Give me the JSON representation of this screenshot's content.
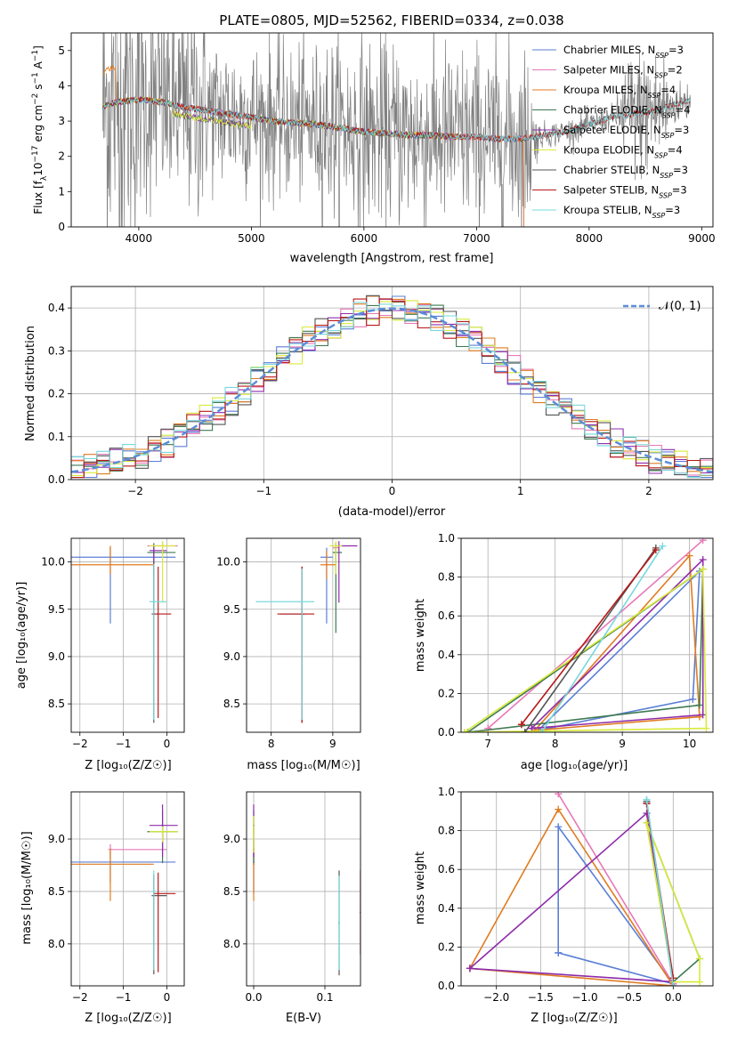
{
  "colors": {
    "chabrier_miles": "#5b7fd6",
    "salpeter_miles": "#e878b8",
    "kroupa_miles": "#e07b20",
    "chabrier_elodie": "#3e7a52",
    "salpeter_elodie": "#8e2cab",
    "kroupa_elodie": "#d9ea3a",
    "chabrier_stelib": "#555555",
    "salpeter_stelib": "#b81818",
    "kroupa_stelib": "#78d8dc",
    "data": "#808080",
    "normal": "#5b8ed8",
    "grid": "#b0b0b0"
  },
  "chart_data": [
    {
      "id": "spectrum",
      "type": "line",
      "title": "PLATE=0805, MJD=52562, FIBERID=0334, z=0.038",
      "xlabel": "wavelength [Angstrom, rest frame]",
      "ylabel_parts": [
        "Flux [f",
        "λ",
        "10",
        "−17",
        " erg cm",
        "−2",
        " s",
        "−1",
        " A",
        "−1",
        "]"
      ],
      "xlim": [
        3400,
        9100
      ],
      "ylim": [
        0,
        5.5
      ],
      "xticks": [
        4000,
        5000,
        6000,
        7000,
        8000,
        9000
      ],
      "yticks": [
        0,
        1,
        2,
        3,
        4,
        5
      ],
      "grid": false,
      "legend_position": "top-right",
      "legend": [
        {
          "label": "Chabrier MILES",
          "n": "3",
          "color_key": "chabrier_miles"
        },
        {
          "label": "Salpeter MILES",
          "n": "2",
          "color_key": "salpeter_miles"
        },
        {
          "label": "Kroupa MILES",
          "n": "4",
          "color_key": "kroupa_miles"
        },
        {
          "label": "Chabrier ELODIE",
          "n": "4",
          "color_key": "chabrier_elodie"
        },
        {
          "label": "Salpeter ELODIE",
          "n": "3",
          "color_key": "salpeter_elodie"
        },
        {
          "label": "Kroupa ELODIE",
          "n": "4",
          "color_key": "kroupa_elodie"
        },
        {
          "label": "Chabrier STELIB",
          "n": "3",
          "color_key": "chabrier_stelib"
        },
        {
          "label": "Salpeter STELIB",
          "n": "3",
          "color_key": "salpeter_stelib"
        },
        {
          "label": "Kroupa STELIB",
          "n": "3",
          "color_key": "kroupa_stelib"
        }
      ],
      "legend_n_label": "N",
      "legend_n_sub": "SSP",
      "model_continuum": {
        "x": [
          3680,
          3750,
          3850,
          3950,
          4050,
          4200,
          4400,
          4600,
          4800,
          5000,
          5200,
          5400,
          5600,
          5800,
          6000,
          6200,
          6400,
          6600,
          6800,
          7000,
          7200,
          7400,
          7600,
          7800,
          8000,
          8200,
          8400,
          8600,
          8800,
          8900
        ],
        "y": [
          3.4,
          3.5,
          3.55,
          3.6,
          3.6,
          3.55,
          3.4,
          3.3,
          3.2,
          3.1,
          3.0,
          2.95,
          2.9,
          2.8,
          2.7,
          2.65,
          2.6,
          2.6,
          2.55,
          2.55,
          2.5,
          2.5,
          2.6,
          2.7,
          2.9,
          3.1,
          3.2,
          3.3,
          3.5,
          3.6
        ]
      }
    },
    {
      "id": "residuals",
      "type": "line",
      "xlabel": "(data-model)/error",
      "ylabel": "Normed distribution",
      "xlim": [
        -2.5,
        2.5
      ],
      "ylim": [
        0,
        0.45
      ],
      "xticks": [
        -2,
        -1,
        0,
        1,
        2
      ],
      "yticks": [
        0.0,
        0.1,
        0.2,
        0.3,
        0.4
      ],
      "grid": true,
      "legend_position": "top-right",
      "normal_label": "𝒩(0, 1)",
      "bin_width": 0.1
    },
    {
      "id": "age_vs_Z",
      "type": "scatter",
      "xlabel": "Z [log₁₀(Z/Z☉)]",
      "ylabel": "age  [log₁₀(age/yr)]",
      "xlim": [
        -2.2,
        0.4
      ],
      "ylim": [
        8.2,
        10.25
      ],
      "xticks": [
        -2,
        -1,
        0
      ],
      "yticks": [
        8.5,
        9.0,
        9.5,
        10.0
      ],
      "grid": true,
      "points": [
        {
          "x": -1.3,
          "xerr": [
            0.9,
            1.5
          ],
          "y": 10.05,
          "yerr": [
            0.7,
            0.1
          ],
          "color_key": "chabrier_miles"
        },
        {
          "x": -0.1,
          "xerr": [
            0.35,
            0.35
          ],
          "y": 10.17,
          "yerr": [
            0.1,
            0.05
          ],
          "color_key": "salpeter_miles"
        },
        {
          "x": -1.3,
          "xerr": [
            0.9,
            1.0
          ],
          "y": 9.97,
          "yerr": [
            0.1,
            0.2
          ],
          "color_key": "kroupa_miles"
        },
        {
          "x": -0.3,
          "xerr": [
            0.15,
            0.5
          ],
          "y": 10.1,
          "yerr": [
            0.6,
            0.1
          ],
          "color_key": "chabrier_elodie"
        },
        {
          "x": -0.3,
          "xerr": [
            0.1,
            0.3
          ],
          "y": 10.12,
          "yerr": [
            0.25,
            0.05
          ],
          "color_key": "salpeter_elodie"
        },
        {
          "x": -0.1,
          "xerr": [
            0.3,
            0.3
          ],
          "y": 10.17,
          "yerr": [
            0.6,
            0.05
          ],
          "color_key": "kroupa_elodie"
        },
        {
          "x": -0.3,
          "xerr": [
            0.05,
            0.05
          ],
          "y": 9.45,
          "yerr": [
            1.15,
            0.55
          ],
          "color_key": "chabrier_stelib"
        },
        {
          "x": -0.2,
          "xerr": [
            0.1,
            0.3
          ],
          "y": 9.45,
          "yerr": [
            1.1,
            0.5
          ],
          "color_key": "salpeter_stelib"
        },
        {
          "x": -0.3,
          "xerr": [
            0.1,
            0.3
          ],
          "y": 9.58,
          "yerr": [
            1.25,
            0.4
          ],
          "color_key": "kroupa_stelib"
        }
      ]
    },
    {
      "id": "age_vs_mass",
      "type": "scatter",
      "xlabel": "mass [log₁₀(M/M☉)]",
      "xlim": [
        7.6,
        9.45
      ],
      "ylim": [
        8.2,
        10.25
      ],
      "xticks": [
        8,
        9
      ],
      "yticks": [
        8.5,
        9.0,
        9.5,
        10.0
      ],
      "grid": true,
      "points": [
        {
          "x": 8.9,
          "xerr": [
            0.1,
            0.1
          ],
          "y": 10.05,
          "yerr": [
            0.7,
            0.1
          ],
          "color_key": "chabrier_miles"
        },
        {
          "x": 9.05,
          "xerr": [
            0.05,
            0.05
          ],
          "y": 10.15,
          "yerr": [
            0.15,
            0.05
          ],
          "color_key": "salpeter_miles"
        },
        {
          "x": 8.9,
          "xerr": [
            0.1,
            0.15
          ],
          "y": 9.97,
          "yerr": [
            0.15,
            0.15
          ],
          "color_key": "kroupa_miles"
        },
        {
          "x": 9.05,
          "xerr": [
            0.05,
            0.1
          ],
          "y": 10.1,
          "yerr": [
            0.85,
            0.1
          ],
          "color_key": "chabrier_elodie"
        },
        {
          "x": 9.1,
          "xerr": [
            0.05,
            0.3
          ],
          "y": 10.17,
          "yerr": [
            0.6,
            0.05
          ],
          "color_key": "salpeter_elodie"
        },
        {
          "x": 9.05,
          "xerr": [
            0.1,
            0.1
          ],
          "y": 10.17,
          "yerr": [
            0.3,
            0.05
          ],
          "color_key": "kroupa_elodie"
        },
        {
          "x": 8.5,
          "xerr": [
            0.35,
            0.05
          ],
          "y": 9.45,
          "yerr": [
            1.15,
            0.5
          ],
          "color_key": "chabrier_stelib"
        },
        {
          "x": 8.5,
          "xerr": [
            0.4,
            0.2
          ],
          "y": 9.45,
          "yerr": [
            1.15,
            0.5
          ],
          "color_key": "salpeter_stelib"
        },
        {
          "x": 8.5,
          "xerr": [
            0.75,
            0.2
          ],
          "y": 9.58,
          "yerr": [
            1.25,
            0.35
          ],
          "color_key": "kroupa_stelib"
        }
      ]
    },
    {
      "id": "mass_weight_vs_age",
      "type": "line",
      "xlabel": "age  [log₁₀(age/yr)]",
      "ylabel": "mass weight",
      "xlim": [
        6.6,
        10.35
      ],
      "ylim": [
        0,
        1
      ],
      "xticks": [
        7,
        8,
        9,
        10
      ],
      "yticks": [
        0.0,
        0.2,
        0.4,
        0.6,
        0.8,
        1.0
      ],
      "grid": true,
      "series": [
        {
          "color_key": "chabrier_miles",
          "x": [
            7.75,
            10.15,
            10.05,
            7.75
          ],
          "y": [
            0.01,
            0.83,
            0.17,
            0.01
          ]
        },
        {
          "color_key": "salpeter_miles",
          "x": [
            7.0,
            10.2,
            7.0
          ],
          "y": [
            0.02,
            0.99,
            0.02
          ]
        },
        {
          "color_key": "kroupa_miles",
          "x": [
            7.7,
            10.0,
            10.15,
            7.7
          ],
          "y": [
            0.01,
            0.91,
            0.08,
            0.01
          ]
        },
        {
          "color_key": "chabrier_elodie",
          "x": [
            6.7,
            10.2,
            10.15,
            6.7
          ],
          "y": [
            0.0,
            0.84,
            0.14,
            0.0
          ]
        },
        {
          "color_key": "salpeter_elodie",
          "x": [
            7.65,
            10.2,
            10.2,
            7.65
          ],
          "y": [
            0.02,
            0.89,
            0.09,
            0.02
          ]
        },
        {
          "color_key": "kroupa_elodie",
          "x": [
            6.65,
            10.2,
            10.25,
            6.65
          ],
          "y": [
            0.0,
            0.84,
            0.02,
            0.0
          ]
        },
        {
          "color_key": "chabrier_stelib",
          "x": [
            7.55,
            9.5,
            7.55
          ],
          "y": [
            0.0,
            0.95,
            0.0
          ]
        },
        {
          "color_key": "salpeter_stelib",
          "x": [
            7.5,
            9.5,
            7.5
          ],
          "y": [
            0.04,
            0.94,
            0.04
          ]
        },
        {
          "color_key": "kroupa_stelib",
          "x": [
            7.8,
            9.6,
            7.8
          ],
          "y": [
            0.0,
            0.96,
            0.0
          ]
        }
      ]
    },
    {
      "id": "mass_vs_Z",
      "type": "scatter",
      "xlabel": "Z [log₁₀(Z/Z☉)]",
      "ylabel": "mass [log₁₀(M/M☉)]",
      "xlim": [
        -2.2,
        0.4
      ],
      "ylim": [
        7.6,
        9.45
      ],
      "xticks": [
        -2,
        -1,
        0
      ],
      "yticks": [
        8.0,
        8.5,
        9.0
      ],
      "grid": true,
      "points": [
        {
          "x": -1.3,
          "xerr": [
            0.9,
            1.5
          ],
          "y": 8.78,
          "yerr": [
            0.2,
            0.1
          ],
          "color_key": "chabrier_miles"
        },
        {
          "x": -1.3,
          "xerr": [
            0.05,
            1.3
          ],
          "y": 8.9,
          "yerr": [
            0.05,
            0.05
          ],
          "color_key": "salpeter_miles"
        },
        {
          "x": -1.3,
          "xerr": [
            0.9,
            1.0
          ],
          "y": 8.76,
          "yerr": [
            0.35,
            0.15
          ],
          "color_key": "kroupa_miles"
        },
        {
          "x": -0.1,
          "xerr": [
            0.35,
            0.35
          ],
          "y": 9.07,
          "yerr": [
            0.3,
            0.2
          ],
          "color_key": "chabrier_elodie"
        },
        {
          "x": -0.1,
          "xerr": [
            0.3,
            0.35
          ],
          "y": 9.13,
          "yerr": [
            0.3,
            0.2
          ],
          "color_key": "salpeter_elodie"
        },
        {
          "x": -0.1,
          "xerr": [
            0.3,
            0.35
          ],
          "y": 9.07,
          "yerr": [
            0.1,
            0.05
          ],
          "color_key": "kroupa_elodie"
        },
        {
          "x": -0.3,
          "xerr": [
            0.05,
            0.3
          ],
          "y": 8.46,
          "yerr": [
            0.75,
            0.2
          ],
          "color_key": "chabrier_stelib"
        },
        {
          "x": -0.2,
          "xerr": [
            0.1,
            0.4
          ],
          "y": 8.48,
          "yerr": [
            0.75,
            0.2
          ],
          "color_key": "salpeter_stelib"
        },
        {
          "x": -0.3,
          "xerr": [
            0.05,
            0.05
          ],
          "y": 8.5,
          "yerr": [
            0.75,
            0.2
          ],
          "color_key": "kroupa_stelib"
        }
      ]
    },
    {
      "id": "mass_vs_ebv",
      "type": "scatter",
      "xlabel": "E(B-V)",
      "xlim": [
        -0.01,
        0.15
      ],
      "ylim": [
        7.6,
        9.45
      ],
      "xticks": [
        0.0,
        0.1
      ],
      "yticks": [
        8.0,
        8.5,
        9.0
      ],
      "grid": true,
      "points": [
        {
          "x": 0.0,
          "y": 8.78,
          "yerr": [
            0.3,
            0.1
          ],
          "color_key": "chabrier_miles"
        },
        {
          "x": 0.0,
          "y": 8.9,
          "yerr": [
            0.1,
            0.1
          ],
          "color_key": "salpeter_miles"
        },
        {
          "x": 0.0,
          "y": 8.76,
          "yerr": [
            0.35,
            0.15
          ],
          "color_key": "kroupa_miles"
        },
        {
          "x": 0.0,
          "y": 9.07,
          "yerr": [
            0.3,
            0.2
          ],
          "color_key": "chabrier_elodie"
        },
        {
          "x": 0.0,
          "y": 9.13,
          "yerr": [
            0.3,
            0.2
          ],
          "color_key": "salpeter_elodie"
        },
        {
          "x": 0.0,
          "y": 9.07,
          "yerr": [
            0.2,
            0.15
          ],
          "color_key": "kroupa_elodie"
        },
        {
          "x": 0.12,
          "y": 8.2,
          "yerr": [
            0.5,
            0.5
          ],
          "color_key": "chabrier_stelib"
        },
        {
          "x": 0.15,
          "y": 8.3,
          "yerr": [
            0.4,
            0.4
          ],
          "color_key": "salpeter_stelib"
        },
        {
          "x": 0.12,
          "y": 8.2,
          "yerr": [
            0.45,
            0.45
          ],
          "color_key": "kroupa_stelib"
        }
      ]
    },
    {
      "id": "mass_weight_vs_Z",
      "type": "line",
      "xlabel": "Z [log₁₀(Z/Z☉)]",
      "ylabel": "mass weight",
      "xlim": [
        -2.4,
        0.45
      ],
      "ylim": [
        0,
        1
      ],
      "xticks": [
        -2.0,
        -1.5,
        -1.0,
        -0.5,
        0.0
      ],
      "yticks": [
        0.0,
        0.2,
        0.4,
        0.6,
        0.8,
        1.0
      ],
      "grid": true,
      "series": [
        {
          "color_key": "chabrier_miles",
          "x": [
            -1.3,
            -1.3,
            0.0,
            -1.3
          ],
          "y": [
            0.17,
            0.82,
            0.01,
            0.17
          ]
        },
        {
          "color_key": "salpeter_miles",
          "x": [
            -1.3,
            0.0,
            -1.3
          ],
          "y": [
            0.99,
            0.01,
            0.99
          ]
        },
        {
          "color_key": "kroupa_miles",
          "x": [
            -2.3,
            -1.3,
            0.0,
            -2.3
          ],
          "y": [
            0.09,
            0.91,
            0.0,
            0.09
          ]
        },
        {
          "color_key": "chabrier_elodie",
          "x": [
            -0.3,
            0.0,
            0.3,
            -0.3
          ],
          "y": [
            0.84,
            0.02,
            0.14,
            0.84
          ]
        },
        {
          "color_key": "salpeter_elodie",
          "x": [
            -2.3,
            -0.3,
            0.0,
            -2.3
          ],
          "y": [
            0.09,
            0.89,
            0.02,
            0.09
          ]
        },
        {
          "color_key": "kroupa_elodie",
          "x": [
            -0.3,
            0.0,
            0.3,
            0.3,
            -0.3
          ],
          "y": [
            0.84,
            0.02,
            0.02,
            0.14,
            0.84
          ]
        },
        {
          "color_key": "chabrier_stelib",
          "x": [
            -0.3,
            0.0,
            -0.3
          ],
          "y": [
            0.95,
            0.0,
            0.95
          ]
        },
        {
          "color_key": "salpeter_stelib",
          "x": [
            -0.3,
            0.0,
            -0.3
          ],
          "y": [
            0.94,
            0.04,
            0.94
          ]
        },
        {
          "color_key": "kroupa_stelib",
          "x": [
            -0.3,
            0.0,
            -0.3
          ],
          "y": [
            0.96,
            0.0,
            0.96
          ]
        }
      ]
    }
  ]
}
